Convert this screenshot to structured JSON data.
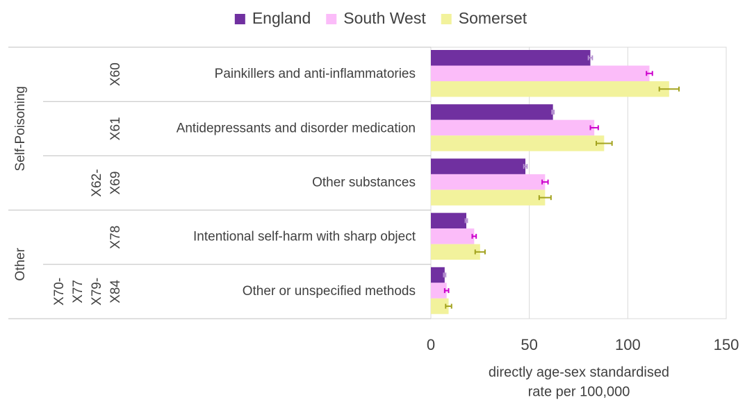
{
  "chart_data": {
    "type": "bar",
    "orientation": "horizontal",
    "categories": [
      "Painkillers and anti-inflammatories",
      "Antidepressants and disorder medication",
      "Other substances",
      "Intentional self-harm with sharp object",
      "Other or unspecified methods"
    ],
    "codes": [
      [
        "X60"
      ],
      [
        "X61"
      ],
      [
        "X62-",
        "X69"
      ],
      [
        "X78"
      ],
      [
        "X70-",
        "X77",
        "X79-",
        "X84"
      ]
    ],
    "groups": [
      "Self-Poisoning",
      "Other"
    ],
    "series": [
      {
        "name": "England",
        "color": "#7030a0",
        "error_color": "#b48fd0",
        "values": [
          81,
          62,
          48,
          18,
          7
        ],
        "errors": [
          1,
          0.5,
          0.8,
          0.5,
          0.5
        ]
      },
      {
        "name": "South West",
        "color": "#fbbcf9",
        "error_color": "#cc00cc",
        "values": [
          111,
          83,
          58,
          22,
          8
        ],
        "errors": [
          1.5,
          2,
          1.5,
          1,
          1
        ]
      },
      {
        "name": "Somerset",
        "color": "#f2f29c",
        "error_color": "#a3a31f",
        "values": [
          121,
          88,
          58,
          25,
          9
        ],
        "errors": [
          5,
          4,
          3,
          2.5,
          1.5
        ]
      }
    ],
    "xlabel": [
      "directly age-sex standardised",
      "rate per 100,000"
    ],
    "xlim": [
      0,
      150
    ],
    "xticks": [
      0,
      50,
      100,
      150
    ],
    "grid": true,
    "legend": "top"
  }
}
